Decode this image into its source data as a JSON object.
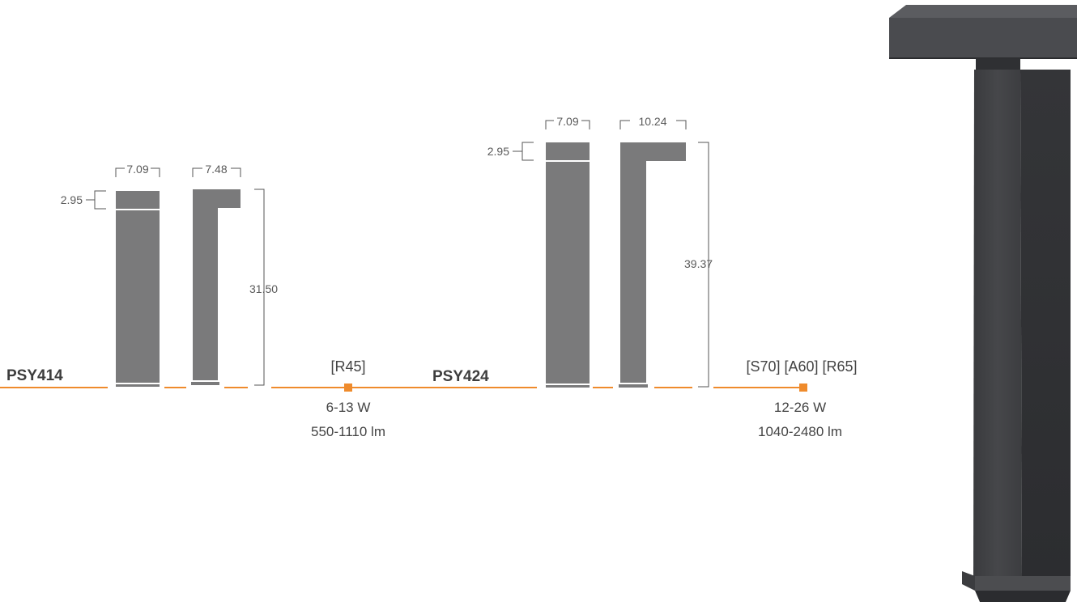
{
  "colors": {
    "accent": "#ef8b2c",
    "pole": "#7a7a7b",
    "pole_dark": "#3f4043",
    "text": "#444444"
  },
  "products": [
    {
      "code": "PSY414",
      "front_width": "7.09",
      "side_width": "7.48",
      "head_height": "2.95",
      "total_height": "31.50",
      "optics": "[R45]",
      "wattage": "6-13 W",
      "lumens": "550-1110 lm"
    },
    {
      "code": "PSY424",
      "front_width": "7.09",
      "side_width": "10.24",
      "head_height": "2.95",
      "total_height": "39.37",
      "optics": "[S70] [A60] [R65]",
      "wattage": "12-26 W",
      "lumens": "1040-2480 lm"
    }
  ],
  "product_image": {
    "icon": "bollard-3d-icon"
  }
}
